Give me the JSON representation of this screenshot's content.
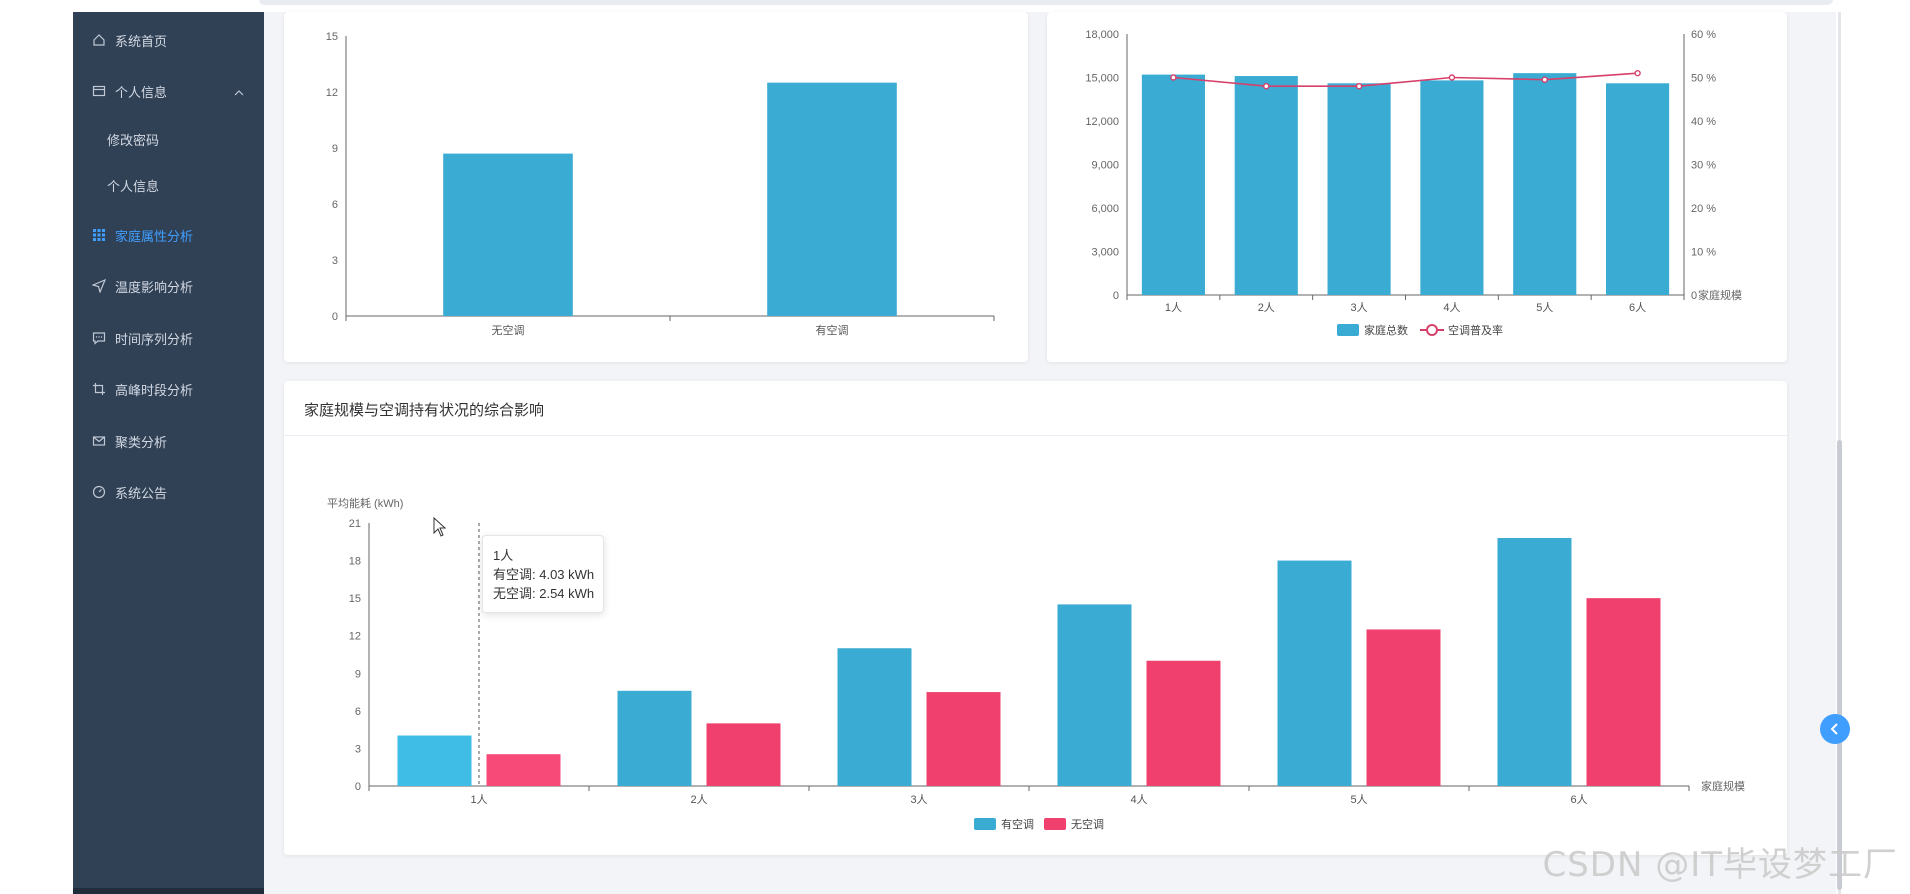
{
  "sidebar": {
    "items": [
      {
        "label": "系统首页",
        "icon": "home-icon",
        "active": false
      },
      {
        "label": "个人信息",
        "icon": "profile-card-icon",
        "active": false,
        "expanded": true
      },
      {
        "label": "修改密码",
        "sub": true
      },
      {
        "label": "个人信息",
        "sub": true
      },
      {
        "label": "家庭属性分析",
        "icon": "grid-icon",
        "active": true
      },
      {
        "label": "温度影响分析",
        "icon": "send-icon",
        "active": false
      },
      {
        "label": "时间序列分析",
        "icon": "chat-icon",
        "active": false
      },
      {
        "label": "高峰时段分析",
        "icon": "crop-icon",
        "active": false
      },
      {
        "label": "聚类分析",
        "icon": "mail-icon",
        "active": false
      },
      {
        "label": "系统公告",
        "icon": "gauge-icon",
        "active": false
      }
    ],
    "active_color": "#409eff"
  },
  "chart_a": {
    "chart_data": {
      "type": "bar",
      "categories": [
        "无空调",
        "有空调"
      ],
      "values": [
        8.7,
        12.5
      ],
      "ylim": [
        0,
        15
      ],
      "yticks": [
        "0",
        "3",
        "6",
        "9",
        "12",
        "15"
      ],
      "color": "#3aabd2"
    }
  },
  "chart_b": {
    "chart_data": {
      "type": "bar",
      "categories": [
        "1人",
        "2人",
        "3人",
        "4人",
        "5人",
        "6人"
      ],
      "series": [
        {
          "name": "家庭总数",
          "type": "bar",
          "values": [
            15200,
            15100,
            14600,
            14800,
            15300,
            14600
          ],
          "color": "#3aabd2"
        },
        {
          "name": "空调普及率",
          "type": "line",
          "values": [
            50,
            48,
            48,
            50,
            49.5,
            51
          ],
          "color": "#d6406b"
        }
      ],
      "ylim_left": [
        0,
        18000
      ],
      "yticks_left": [
        "0",
        "3,000",
        "6,000",
        "9,000",
        "12,000",
        "15,000",
        "18,000"
      ],
      "ylim_right": [
        0,
        60
      ],
      "yticks_right": [
        "0",
        "10 %",
        "20 %",
        "30 %",
        "40 %",
        "50 %",
        "60 %"
      ],
      "xlabel": "家庭规模",
      "legend": "bottom-center"
    }
  },
  "chart_c": {
    "title": "家庭规模与空调持有状况的综合影响",
    "chart_data": {
      "type": "bar",
      "categories": [
        "1人",
        "2人",
        "3人",
        "4人",
        "5人",
        "6人"
      ],
      "series": [
        {
          "name": "有空调",
          "values": [
            4.03,
            7.6,
            11.0,
            14.5,
            18.0,
            19.8
          ],
          "color": "#3aabd2"
        },
        {
          "name": "无空调",
          "values": [
            2.54,
            5.0,
            7.5,
            10.0,
            12.5,
            15.0
          ],
          "color": "#f0406d"
        }
      ],
      "ylim": [
        0,
        21
      ],
      "yticks": [
        "0",
        "3",
        "6",
        "9",
        "12",
        "15",
        "18",
        "21"
      ],
      "ylabel": "平均能耗 (kWh)",
      "xlabel": "家庭规模",
      "legend": "bottom-center"
    },
    "tooltip": {
      "title": "1人",
      "line1": "有空调: 4.03 kWh",
      "line2": "无空调: 2.54 kWh"
    }
  },
  "watermark": "CSDN @IT毕设梦工厂"
}
